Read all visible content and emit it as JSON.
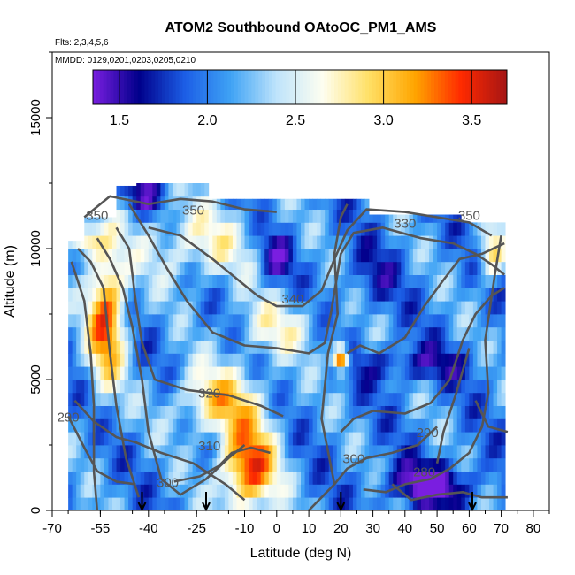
{
  "chart_data": {
    "type": "heatmap",
    "title": "ATOM2 Southbound OAtoOC_PM1_AMS",
    "subtitle_flights": "Flts: 2,3,4,5,6",
    "subtitle_dates": "MMDD: 0129,0201,0203,0205,0210",
    "xlabel": "Latitude (deg N)",
    "ylabel": "Altitude (m)",
    "xlim": [
      -70,
      85
    ],
    "ylim": [
      0,
      17500
    ],
    "x_ticks": [
      "-70",
      "-55",
      "-40",
      "-25",
      "-10",
      "0",
      "10",
      "20",
      "30",
      "40",
      "50",
      "60",
      "70",
      "80"
    ],
    "x_tick_values": [
      -70,
      -55,
      -40,
      -25,
      -10,
      0,
      10,
      20,
      30,
      40,
      50,
      60,
      70,
      80
    ],
    "y_ticks": [
      "0",
      "5000",
      "10000",
      "15000"
    ],
    "y_tick_values": [
      0,
      5000,
      10000,
      15000
    ],
    "colorbar": {
      "min": 1.35,
      "max": 3.7,
      "ticks": [
        "1.5",
        "2.0",
        "2.5",
        "3.0",
        "3.5"
      ],
      "tick_values": [
        1.5,
        2.0,
        2.5,
        3.0,
        3.5
      ],
      "colors": [
        "#7a1ee0",
        "#00008b",
        "#1c5ee6",
        "#3fa3f5",
        "#bfe4fb",
        "#fefef0",
        "#ffe066",
        "#ffa500",
        "#ff2a00",
        "#a51515"
      ]
    },
    "contour_labels": [
      {
        "text": "350",
        "x": -26,
        "y": 11300
      },
      {
        "text": "350",
        "x": -56,
        "y": 11100
      },
      {
        "text": "330",
        "x": 40,
        "y": 10800
      },
      {
        "text": "350",
        "x": 60,
        "y": 11100
      },
      {
        "text": "340",
        "x": 5,
        "y": 7900
      },
      {
        "text": "320",
        "x": -21,
        "y": 4300
      },
      {
        "text": "310",
        "x": -21,
        "y": 2300
      },
      {
        "text": "290",
        "x": -65,
        "y": 3400
      },
      {
        "text": "290",
        "x": 47,
        "y": 2800
      },
      {
        "text": "300",
        "x": -34,
        "y": 900
      },
      {
        "text": "300",
        "x": 24,
        "y": 1800
      },
      {
        "text": "280",
        "x": 46,
        "y": 1300
      }
    ],
    "flight_markers_lat": [
      -42,
      -22,
      20,
      61
    ],
    "notes_units": ""
  }
}
